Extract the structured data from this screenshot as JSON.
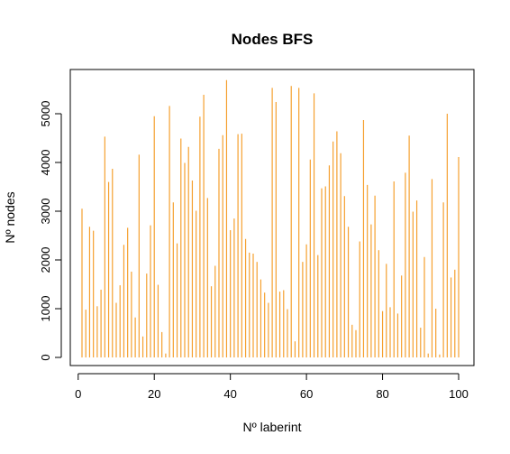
{
  "chart_data": {
    "type": "bar",
    "title": "Nodes BFS",
    "xlabel": "Nº laberint",
    "ylabel": "Nº nodes",
    "xlim": [
      0,
      100
    ],
    "ylim": [
      0,
      5700
    ],
    "x_ticks": [
      0,
      20,
      40,
      60,
      80,
      100
    ],
    "y_ticks": [
      0,
      1000,
      2000,
      3000,
      4000,
      5000
    ],
    "color": "#F5A02F",
    "grid": false,
    "legend": "none",
    "x": [
      1,
      2,
      3,
      4,
      5,
      6,
      7,
      8,
      9,
      10,
      11,
      12,
      13,
      14,
      15,
      16,
      17,
      18,
      19,
      20,
      21,
      22,
      23,
      24,
      25,
      26,
      27,
      28,
      29,
      30,
      31,
      32,
      33,
      34,
      35,
      36,
      37,
      38,
      39,
      40,
      41,
      42,
      43,
      44,
      45,
      46,
      47,
      48,
      49,
      50,
      51,
      52,
      53,
      54,
      55,
      56,
      57,
      58,
      59,
      60,
      61,
      62,
      63,
      64,
      65,
      66,
      67,
      68,
      69,
      70,
      71,
      72,
      73,
      74,
      75,
      76,
      77,
      78,
      79,
      80,
      81,
      82,
      83,
      84,
      85,
      86,
      87,
      88,
      89,
      90,
      91,
      92,
      93,
      94,
      95,
      96,
      97,
      98,
      99,
      100
    ],
    "values": [
      3050,
      980,
      2680,
      2600,
      1050,
      1390,
      4530,
      3600,
      3870,
      1120,
      1480,
      2310,
      2660,
      1760,
      820,
      4160,
      430,
      1720,
      2710,
      4950,
      1490,
      520,
      80,
      5160,
      3180,
      2340,
      4490,
      3990,
      4320,
      3630,
      3010,
      4940,
      5390,
      3270,
      1460,
      1880,
      4280,
      4560,
      5690,
      2610,
      2850,
      4580,
      4590,
      2430,
      2150,
      2130,
      1960,
      1600,
      1330,
      1120,
      5530,
      5240,
      1350,
      1380,
      990,
      5570,
      330,
      5530,
      1960,
      2320,
      4060,
      5420,
      2100,
      3470,
      3510,
      3940,
      4430,
      4640,
      4190,
      3310,
      2680,
      670,
      560,
      2380,
      4870,
      3540,
      2730,
      3320,
      2200,
      950,
      1920,
      1030,
      3610,
      900,
      1680,
      3790,
      4550,
      2990,
      3220,
      610,
      2060,
      80,
      3660,
      1000,
      60,
      3180,
      5000,
      1640,
      1800,
      4110
    ]
  }
}
